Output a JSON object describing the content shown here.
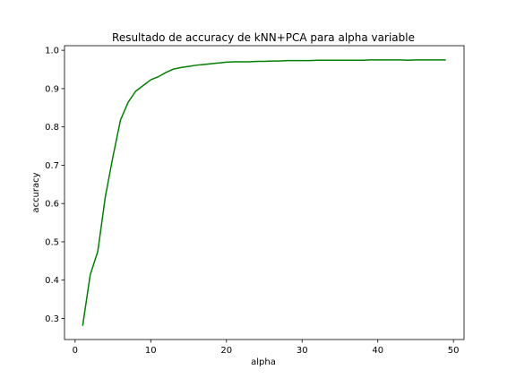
{
  "chart_data": {
    "type": "line",
    "title": "Resultado de accuracy de kNN+PCA para alpha variable",
    "xlabel": "alpha",
    "ylabel": "accuracy",
    "xlim": [
      -1.4,
      51.4
    ],
    "ylim": [
      0.245,
      1.012
    ],
    "xticks": [
      0,
      10,
      20,
      30,
      40,
      50
    ],
    "yticks": [
      0.3,
      0.4,
      0.5,
      0.6,
      0.7,
      0.8,
      0.9,
      1.0
    ],
    "xtick_labels": [
      "0",
      "10",
      "20",
      "30",
      "40",
      "50"
    ],
    "ytick_labels": [
      "0.3",
      "0.4",
      "0.5",
      "0.6",
      "0.7",
      "0.8",
      "0.9",
      "1.0"
    ],
    "grid": false,
    "color": "#008000",
    "series": [
      {
        "x": [
          1,
          2,
          3,
          4,
          5,
          6,
          7,
          8,
          9,
          10,
          11,
          12,
          13,
          14,
          15,
          16,
          17,
          18,
          19,
          20,
          21,
          22,
          23,
          24,
          25,
          26,
          27,
          28,
          29,
          30,
          31,
          32,
          33,
          34,
          35,
          36,
          37,
          38,
          39,
          40,
          41,
          42,
          43,
          44,
          45,
          46,
          47,
          48,
          49
        ],
        "values": [
          0.281,
          0.414,
          0.475,
          0.618,
          0.722,
          0.818,
          0.864,
          0.893,
          0.908,
          0.923,
          0.931,
          0.942,
          0.951,
          0.955,
          0.958,
          0.961,
          0.963,
          0.965,
          0.967,
          0.969,
          0.97,
          0.97,
          0.97,
          0.971,
          0.971,
          0.972,
          0.972,
          0.973,
          0.973,
          0.973,
          0.973,
          0.974,
          0.974,
          0.974,
          0.974,
          0.974,
          0.974,
          0.974,
          0.975,
          0.975,
          0.975,
          0.975,
          0.975,
          0.974,
          0.975,
          0.975,
          0.975,
          0.975,
          0.975
        ]
      }
    ]
  }
}
